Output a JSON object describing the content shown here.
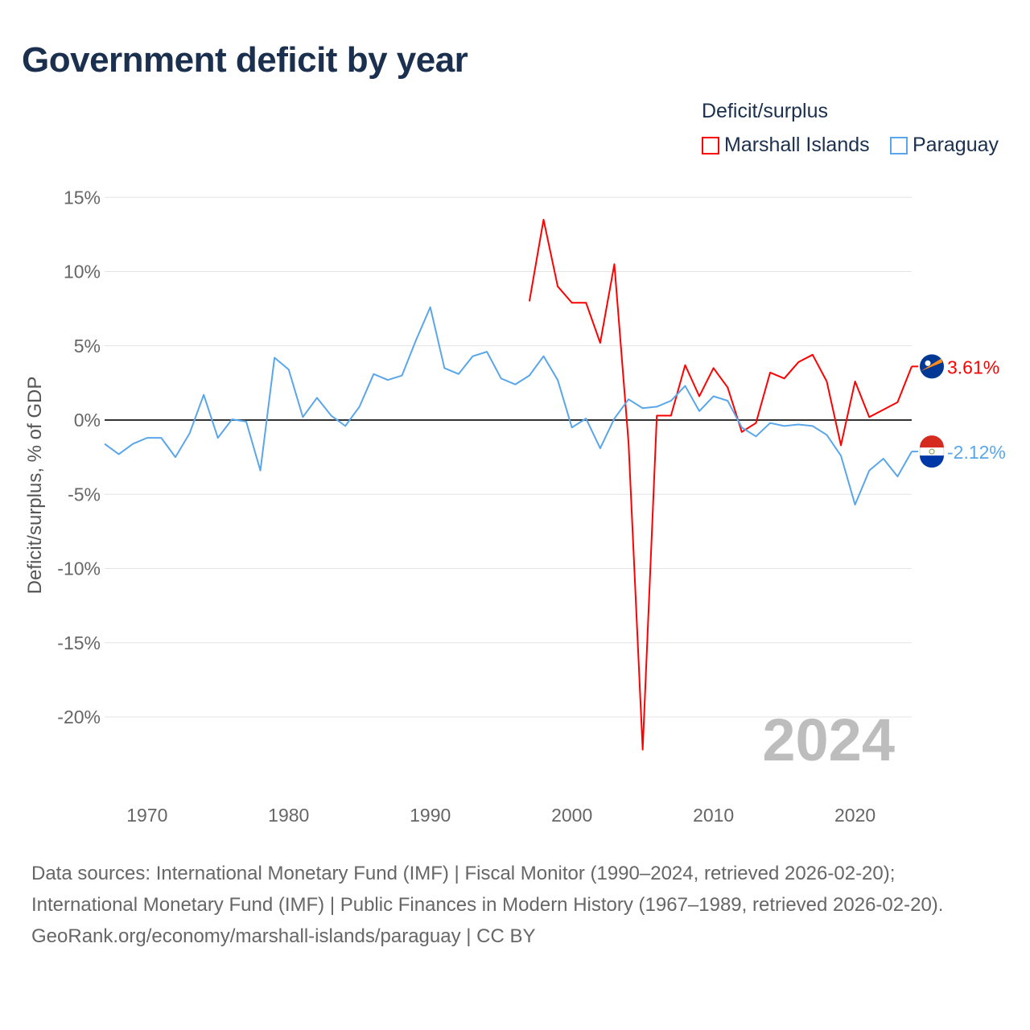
{
  "title": "Government deficit by year",
  "legend": {
    "title": "Deficit/surplus",
    "items": [
      {
        "label": "Marshall Islands",
        "color": "#ff0000"
      },
      {
        "label": "Paraguay",
        "color": "#5aa6ea"
      }
    ]
  },
  "watermark_year": "2024",
  "footer": {
    "sources": "Data sources: International Monetary Fund (IMF) | Fiscal Monitor (1990–2024, retrieved 2026-02-20); International Monetary Fund (IMF) | Public Finances in Modern History (1967–1989, retrieved 2026-02-20).",
    "link": "GeoRank.org/economy/marshall-islands/paraguay | CC BY"
  },
  "chart_data": {
    "type": "line",
    "title": "Government deficit by year",
    "xlabel": "",
    "ylabel": "Deficit/surplus, % of GDP",
    "ylim": [
      -24,
      15
    ],
    "xlim": [
      1967,
      2024
    ],
    "yticks": [
      15,
      10,
      5,
      0,
      -5,
      -10,
      -15,
      -20
    ],
    "ytick_labels": [
      "15%",
      "10%",
      "5%",
      "0%",
      "-5%",
      "-10%",
      "-15%",
      "-20%"
    ],
    "xticks": [
      1970,
      1980,
      1990,
      2000,
      2010,
      2020
    ],
    "xtick_labels": [
      "1970",
      "1980",
      "1990",
      "2000",
      "2010",
      "2020"
    ],
    "grid": true,
    "legend_position": "top-right",
    "series": [
      {
        "name": "Marshall Islands",
        "color": "#ff0000",
        "end_label": "3.61%",
        "x": [
          1997,
          1998,
          1999,
          2000,
          2001,
          2002,
          2003,
          2004,
          2005,
          2006,
          2007,
          2008,
          2009,
          2010,
          2011,
          2012,
          2013,
          2014,
          2015,
          2016,
          2017,
          2018,
          2019,
          2020,
          2021,
          2022,
          2023,
          2024
        ],
        "values": [
          8.0,
          13.5,
          9.0,
          7.9,
          7.9,
          5.2,
          10.5,
          -1.5,
          -22.2,
          0.3,
          0.3,
          3.7,
          1.6,
          3.5,
          2.2,
          -0.8,
          -0.2,
          3.2,
          2.8,
          3.9,
          4.4,
          2.6,
          -1.7,
          2.6,
          0.2,
          0.7,
          1.2,
          3.61
        ]
      },
      {
        "name": "Paraguay",
        "color": "#5aa6ea",
        "end_label": "-2.12%",
        "x": [
          1967,
          1968,
          1969,
          1970,
          1971,
          1972,
          1973,
          1974,
          1975,
          1976,
          1977,
          1978,
          1979,
          1980,
          1981,
          1982,
          1983,
          1984,
          1985,
          1986,
          1987,
          1988,
          1989,
          1990,
          1991,
          1992,
          1993,
          1994,
          1995,
          1996,
          1997,
          1998,
          1999,
          2000,
          2001,
          2002,
          2003,
          2004,
          2005,
          2006,
          2007,
          2008,
          2009,
          2010,
          2011,
          2012,
          2013,
          2014,
          2015,
          2016,
          2017,
          2018,
          2019,
          2020,
          2021,
          2022,
          2023,
          2024
        ],
        "values": [
          -1.6,
          -2.3,
          -1.6,
          -1.2,
          -1.2,
          -2.5,
          -0.9,
          1.7,
          -1.2,
          0.05,
          -0.1,
          -3.4,
          4.2,
          3.4,
          0.2,
          1.5,
          0.3,
          -0.4,
          0.9,
          3.1,
          2.7,
          3.0,
          5.4,
          7.6,
          3.5,
          3.1,
          4.3,
          4.6,
          2.8,
          2.4,
          3.0,
          4.3,
          2.7,
          -0.5,
          0.1,
          -1.9,
          0.1,
          1.4,
          0.8,
          0.9,
          1.3,
          2.3,
          0.6,
          1.6,
          1.3,
          -0.5,
          -1.1,
          -0.2,
          -0.4,
          -0.3,
          -0.4,
          -1.0,
          -2.4,
          -5.7,
          -3.4,
          -2.6,
          -3.8,
          -2.12
        ]
      }
    ]
  }
}
